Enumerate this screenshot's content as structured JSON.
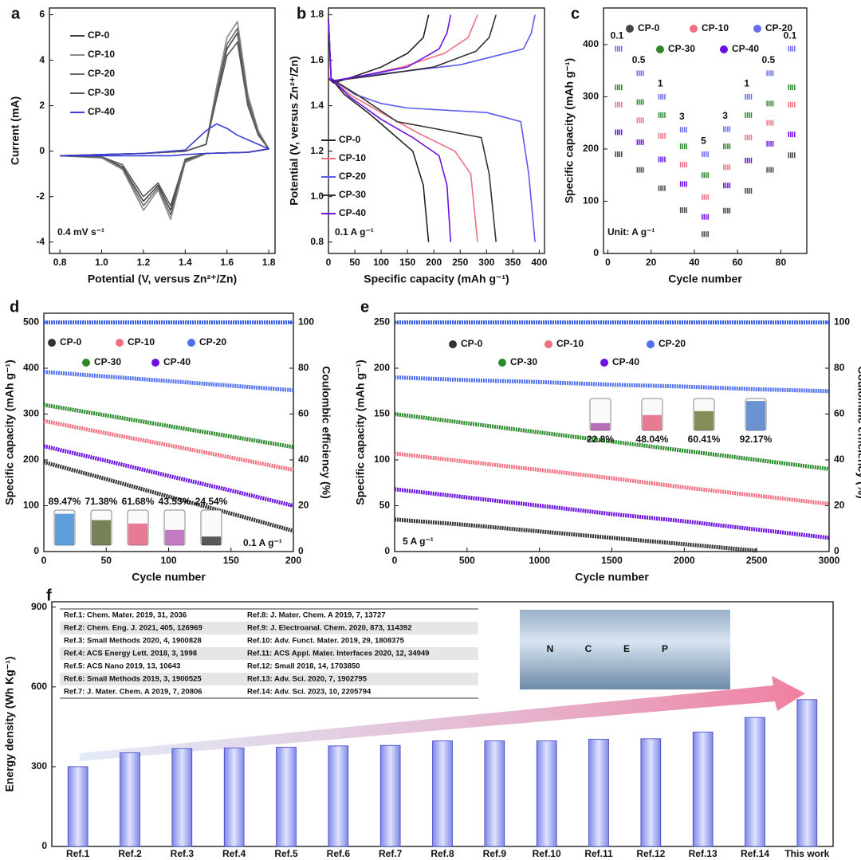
{
  "chart_data": [
    {
      "type": "line",
      "label": "a",
      "xlabel": "Potential (V, versus Zn²⁺/Zn)",
      "ylabel": "Current (mA)",
      "xlim": [
        0.75,
        1.83
      ],
      "xticks": [
        0.8,
        {
          "value": 1,
          "label": "1.0"
        },
        1.2,
        1.4,
        1.6,
        1.8
      ],
      "ylim": [
        -4.5,
        6.3
      ],
      "yticks": [
        -4,
        -2,
        0,
        2,
        4,
        6
      ],
      "annotations": [
        "0.4 mV s⁻¹"
      ],
      "x": [
        0.8,
        1.0,
        1.2,
        1.4,
        1.5,
        1.55,
        1.6,
        1.65,
        1.7,
        1.75,
        1.8,
        1.7,
        1.5,
        1.4,
        1.33,
        1.27,
        1.2,
        1.1,
        1.0,
        0.8
      ],
      "series": [
        {
          "name": "CP-0",
          "color": "#444444",
          "values": [
            -0.2,
            -0.15,
            -0.1,
            0,
            0.3,
            2.5,
            4.5,
            5.2,
            2.2,
            0.8,
            0.1,
            -0.05,
            -0.1,
            -0.4,
            -2.6,
            -1.5,
            -2.2,
            -0.7,
            -0.25,
            -0.2
          ]
        },
        {
          "name": "CP-10",
          "color": "#8a8a8a",
          "values": [
            -0.2,
            -0.15,
            -0.1,
            0,
            0.3,
            2.8,
            5.0,
            5.7,
            2.5,
            0.9,
            0.1,
            -0.05,
            -0.1,
            -0.5,
            -3.0,
            -1.7,
            -2.6,
            -0.8,
            -0.3,
            -0.2
          ]
        },
        {
          "name": "CP-20",
          "color": "#6a6a6a",
          "values": [
            -0.2,
            -0.15,
            -0.1,
            0,
            0.3,
            2.6,
            4.7,
            5.4,
            2.3,
            0.8,
            0.1,
            -0.05,
            -0.1,
            -0.45,
            -2.8,
            -1.6,
            -2.4,
            -0.75,
            -0.25,
            -0.2
          ]
        },
        {
          "name": "CP-30",
          "color": "#555555",
          "values": [
            -0.2,
            -0.15,
            -0.1,
            0,
            0.3,
            2.3,
            4.2,
            4.8,
            2.0,
            0.7,
            0.1,
            -0.05,
            -0.1,
            -0.35,
            -2.4,
            -1.4,
            -2.0,
            -0.6,
            -0.25,
            -0.2
          ]
        },
        {
          "name": "CP-40",
          "color": "#3b3bd6",
          "values": [
            -0.2,
            -0.15,
            -0.1,
            0.05,
            0.9,
            1.2,
            1.0,
            0.7,
            0.5,
            0.3,
            0.1,
            -0.05,
            -0.1,
            -0.15,
            -0.2,
            -0.2,
            -0.2,
            -0.2,
            -0.2,
            -0.2
          ]
        }
      ]
    },
    {
      "type": "line",
      "label": "b",
      "xlabel": "Specific capacity (mAh g⁻¹)",
      "ylabel": "Potential (V, versus Zn²⁺/Zn)",
      "xlim": [
        0,
        410
      ],
      "xticks": [
        0,
        50,
        100,
        150,
        200,
        250,
        300,
        350,
        400
      ],
      "ylim": [
        0.75,
        1.83
      ],
      "yticks": [
        0.8,
        {
          "value": 1,
          "label": "1.0"
        },
        1.2,
        1.4,
        1.6,
        1.8
      ],
      "annotations": [
        "0.1 A g⁻¹"
      ],
      "series": [
        {
          "name": "CP-0",
          "color": "#222222",
          "x": [
            0,
            10,
            50,
            100,
            150,
            180,
            190,
            null,
            0,
            5,
            30,
            80,
            120,
            160,
            180,
            190
          ],
          "values": [
            1.52,
            1.5,
            1.53,
            1.57,
            1.63,
            1.7,
            1.8,
            null,
            1.78,
            1.52,
            1.45,
            1.36,
            1.28,
            1.2,
            1.05,
            0.8
          ]
        },
        {
          "name": "CP-10",
          "color": "#f07080",
          "x": [
            0,
            10,
            60,
            140,
            220,
            265,
            283,
            null,
            0,
            5,
            40,
            100,
            170,
            240,
            270,
            283
          ],
          "values": [
            1.52,
            1.51,
            1.53,
            1.57,
            1.63,
            1.7,
            1.8,
            null,
            1.78,
            1.52,
            1.45,
            1.37,
            1.28,
            1.2,
            1.1,
            0.8
          ]
        },
        {
          "name": "CP-20",
          "color": "#5b5bf0",
          "x": [
            0,
            10,
            100,
            250,
            370,
            385,
            392,
            null,
            0,
            5,
            50,
            100,
            150,
            300,
            365,
            380,
            392
          ],
          "values": [
            1.52,
            1.51,
            1.54,
            1.58,
            1.65,
            1.72,
            1.8,
            null,
            1.78,
            1.52,
            1.45,
            1.41,
            1.39,
            1.37,
            1.33,
            1.1,
            0.8
          ]
        },
        {
          "name": "CP-30",
          "color": "#333333",
          "x": [
            0,
            10,
            80,
            200,
            280,
            305,
            318,
            null,
            0,
            5,
            60,
            130,
            200,
            290,
            305,
            318
          ],
          "values": [
            1.52,
            1.51,
            1.53,
            1.57,
            1.64,
            1.7,
            1.8,
            null,
            1.78,
            1.52,
            1.44,
            1.33,
            1.3,
            1.26,
            1.1,
            0.8
          ]
        },
        {
          "name": "CP-40",
          "color": "#6a10e0",
          "x": [
            0,
            10,
            60,
            150,
            210,
            225,
            232,
            null,
            0,
            5,
            40,
            100,
            160,
            210,
            225,
            232
          ],
          "values": [
            1.52,
            1.51,
            1.53,
            1.57,
            1.65,
            1.72,
            1.8,
            null,
            1.78,
            1.52,
            1.44,
            1.34,
            1.26,
            1.18,
            1.05,
            0.8
          ]
        }
      ]
    },
    {
      "type": "scatter",
      "label": "c",
      "xlabel": "Cycle number",
      "ylabel": "Specific capacity (mAh g⁻¹)",
      "xlim": [
        -2,
        92
      ],
      "xticks": [
        0,
        20,
        40,
        60,
        80
      ],
      "ylim": [
        0,
        470
      ],
      "yticks": [
        0,
        100,
        200,
        300,
        400
      ],
      "annotations": [
        "Unit: A g⁻¹"
      ],
      "rates": [
        0.1,
        0.5,
        1,
        3,
        5,
        3,
        1,
        0.5,
        0.1
      ],
      "x": [
        5,
        15,
        25,
        35,
        45,
        55,
        65,
        75,
        85
      ],
      "series": [
        {
          "name": "CP-0",
          "color": "#444444",
          "values": [
            190,
            160,
            125,
            83,
            37,
            82,
            120,
            160,
            188
          ]
        },
        {
          "name": "CP-10",
          "color": "#f07080",
          "values": [
            285,
            255,
            225,
            170,
            108,
            165,
            222,
            250,
            285
          ]
        },
        {
          "name": "CP-20",
          "color": "#6a6af2",
          "values": [
            392,
            345,
            300,
            237,
            190,
            238,
            300,
            345,
            392
          ]
        },
        {
          "name": "CP-30",
          "color": "#2a8a2a",
          "values": [
            318,
            290,
            265,
            205,
            150,
            205,
            265,
            287,
            318
          ]
        },
        {
          "name": "CP-40",
          "color": "#6a10e0",
          "values": [
            232,
            213,
            180,
            133,
            70,
            130,
            178,
            210,
            228
          ]
        }
      ]
    },
    {
      "type": "line",
      "label": "d",
      "xlabel": "Cycle number",
      "ylabel": "Specific capacity (mAh g⁻¹)",
      "y2label": "Coulombic efficiency (%)",
      "xlim": [
        0,
        200
      ],
      "xticks": [
        0,
        50,
        100,
        150,
        200
      ],
      "ylim": [
        0,
        520
      ],
      "yticks": [
        0,
        100,
        200,
        300,
        400,
        500
      ],
      "y2lim": [
        0,
        104
      ],
      "y2ticks": [
        0,
        20,
        40,
        60,
        80,
        100
      ],
      "annotations": [
        "0.1 A g⁻¹"
      ],
      "x": [
        0,
        50,
        100,
        150,
        200
      ],
      "series": [
        {
          "name": "CP-0",
          "color": "#333333",
          "values": [
            195,
            158,
            120,
            83,
            45
          ]
        },
        {
          "name": "CP-10",
          "color": "#f07080",
          "values": [
            285,
            258,
            232,
            205,
            178
          ]
        },
        {
          "name": "CP-20",
          "color": "#5070f0",
          "values": [
            392,
            382,
            372,
            362,
            352
          ]
        },
        {
          "name": "CP-30",
          "color": "#2a8a2a",
          "values": [
            320,
            297,
            274,
            251,
            228
          ]
        },
        {
          "name": "CP-40",
          "color": "#6a10e0",
          "values": [
            230,
            198,
            165,
            133,
            100
          ]
        },
        {
          "axis": "y2",
          "color": "#3a5fe0",
          "values": [
            100,
            100,
            100,
            100,
            100
          ]
        }
      ],
      "retention": {
        "values": [
          89.47,
          71.38,
          61.68,
          43.53,
          24.54
        ],
        "value_labels": [
          "89.47%",
          "71.38%",
          "61.68%",
          "43.53%",
          "24.54%"
        ],
        "colors": [
          "#2a7fd0",
          "#4a5a20",
          "#e05070",
          "#b050b0",
          "#222222"
        ]
      }
    },
    {
      "type": "line",
      "label": "e",
      "xlabel": "Cycle number",
      "ylabel": "Specific capacity (mAh g⁻¹)",
      "y2label": "Coulombic efficiency (%)",
      "xlim": [
        0,
        3000
      ],
      "xticks": [
        0,
        500,
        1000,
        1500,
        2000,
        2500,
        3000
      ],
      "ylim": [
        0,
        260
      ],
      "yticks": [
        0,
        50,
        100,
        150,
        200,
        250
      ],
      "y2lim": [
        0,
        104
      ],
      "y2ticks": [
        0,
        20,
        40,
        60,
        80,
        100
      ],
      "annotations": [
        "5 A g⁻¹"
      ],
      "x": [
        0,
        500,
        1000,
        1500,
        2000,
        2500,
        3000
      ],
      "series": [
        {
          "name": "CP-0",
          "color": "#333333",
          "values": [
            35,
            29,
            22,
            15,
            8,
            1,
            null
          ]
        },
        {
          "name": "CP-10",
          "color": "#f07080",
          "values": [
            107,
            98,
            89,
            80,
            70,
            61,
            52
          ]
        },
        {
          "name": "CP-20",
          "color": "#5070f0",
          "values": [
            190,
            187,
            185,
            182,
            180,
            177,
            175
          ]
        },
        {
          "name": "CP-30",
          "color": "#2a8a2a",
          "values": [
            150,
            140,
            130,
            120,
            110,
            100,
            90
          ]
        },
        {
          "name": "CP-40",
          "color": "#6a10e0",
          "values": [
            68,
            59,
            50,
            41,
            33,
            24,
            15
          ]
        },
        {
          "axis": "y2",
          "color": "#3a5fe0",
          "values": [
            100,
            100,
            100,
            100,
            100,
            100,
            100
          ]
        }
      ],
      "retention": {
        "values": [
          22.8,
          48.04,
          60.41,
          92.17
        ],
        "value_labels": [
          "22.8%",
          "48.04%",
          "60.41%",
          "92.17%"
        ],
        "colors": [
          "#a040a0",
          "#e05070",
          "#5a6a20",
          "#3a70c0"
        ]
      }
    },
    {
      "type": "bar",
      "label": "f",
      "ylabel": "Energy density (Wh Kg⁻¹)",
      "ylim": [
        0,
        920
      ],
      "yticks": [
        0,
        300,
        600,
        900
      ],
      "categories": [
        "Ref.1",
        "Ref.2",
        "Ref.3",
        "Ref.4",
        "Ref.5",
        "Ref.6",
        "Ref.7",
        "Ref.8",
        "Ref.9",
        "Ref.10",
        "Ref.11",
        "Ref.12",
        "Ref.13",
        "Ref.14",
        "This work"
      ],
      "values": [
        300,
        352,
        368,
        370,
        373,
        378,
        380,
        397,
        397,
        397,
        403,
        405,
        430,
        485,
        552
      ],
      "color": "#9fa8f0",
      "references": [
        [
          "Ref.1: Chem. Mater. 2019, 31, 2036",
          "Ref.8: J. Mater. Chem. A 2019, 7, 13727"
        ],
        [
          "Ref.2: Chem. Eng. J. 2021, 405, 126969",
          "Ref.9: J. Electroanal. Chem. 2020, 873, 114392"
        ],
        [
          "Ref.3: Small Methods 2020, 4, 1900828",
          "Ref.10: Adv. Funct. Mater. 2019, 29, 1808375"
        ],
        [
          "Ref.4: ACS Energy Lett. 2018, 3, 1998",
          "Ref.11: ACS Appl. Mater. Interfaces 2020, 12, 34949"
        ],
        [
          "Ref.5: ACS Nano 2019, 13, 10643",
          "Ref.12: Small 2018, 14, 1703850"
        ],
        [
          "Ref.6: Small Methods 2019, 3, 1900525",
          "Ref.13: Adv. Sci. 2020, 7, 1902795"
        ],
        [
          "Ref.7: J. Mater. Chem. A 2019, 7, 20806",
          "Ref.14: Adv. Sci. 2023, 10, 2205794"
        ]
      ],
      "inset_letters": [
        "N",
        "C",
        "E",
        "P"
      ]
    }
  ]
}
